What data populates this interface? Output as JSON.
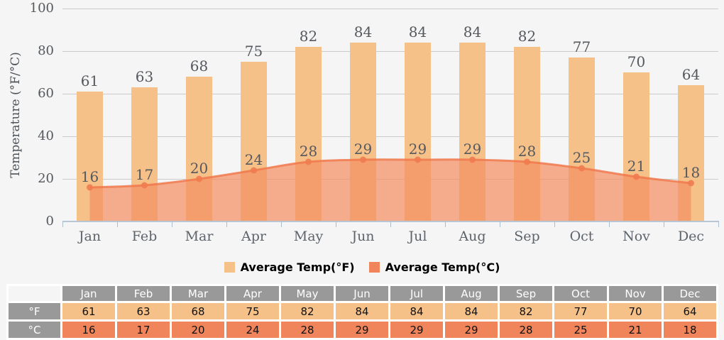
{
  "chart_data": {
    "type": "bar",
    "title": "",
    "categories": [
      "Jan",
      "Feb",
      "Mar",
      "Apr",
      "May",
      "Jun",
      "Jul",
      "Aug",
      "Sep",
      "Oct",
      "Nov",
      "Dec"
    ],
    "series": [
      {
        "name": "Average Temp(°F)",
        "render": "bar",
        "values": [
          61,
          63,
          68,
          75,
          82,
          84,
          84,
          84,
          82,
          77,
          70,
          64
        ],
        "color": "#F6C189"
      },
      {
        "name": "Average Temp(°C)",
        "render": "area",
        "values": [
          16,
          17,
          20,
          24,
          28,
          29,
          29,
          29,
          28,
          25,
          21,
          18
        ],
        "line_color": "#F0794E",
        "fill_color": "#F48D61",
        "fill_opacity": 0.7,
        "marker_color": "#EF7C50"
      }
    ],
    "xlabel": "",
    "ylabel": "Temperature (°F/°C)",
    "ylim": [
      0,
      100
    ],
    "yticks": [
      0,
      20,
      40,
      60,
      80,
      100
    ],
    "grid": "horizontal",
    "legend_position": "bottom",
    "data_labels": true
  },
  "legend": {
    "items": [
      {
        "label": "Average Temp(°F)",
        "color": "#F6C189"
      },
      {
        "label": "Average Temp(°C)",
        "color": "#F0855C"
      }
    ]
  },
  "table": {
    "corner_label": "",
    "column_headers": [
      "Jan",
      "Feb",
      "Mar",
      "Apr",
      "May",
      "Jun",
      "Jul",
      "Aug",
      "Sep",
      "Oct",
      "Nov",
      "Dec"
    ],
    "rows": [
      {
        "label": "°F",
        "values": [
          61,
          63,
          68,
          75,
          82,
          84,
          84,
          84,
          82,
          77,
          70,
          64
        ]
      },
      {
        "label": "°C",
        "values": [
          16,
          17,
          20,
          24,
          28,
          29,
          29,
          29,
          28,
          25,
          21,
          18
        ]
      }
    ],
    "header_bg": "#999999",
    "row_f_bg": "#F6C189",
    "row_c_bg": "#F0855C"
  },
  "colors": {
    "background": "#F5F5F5",
    "gridline": "#CBCBCB",
    "axis_line": "#B7C6D2",
    "tick_label": "#55595E",
    "month_label": "#5E646B",
    "value_label": "#55595E"
  }
}
